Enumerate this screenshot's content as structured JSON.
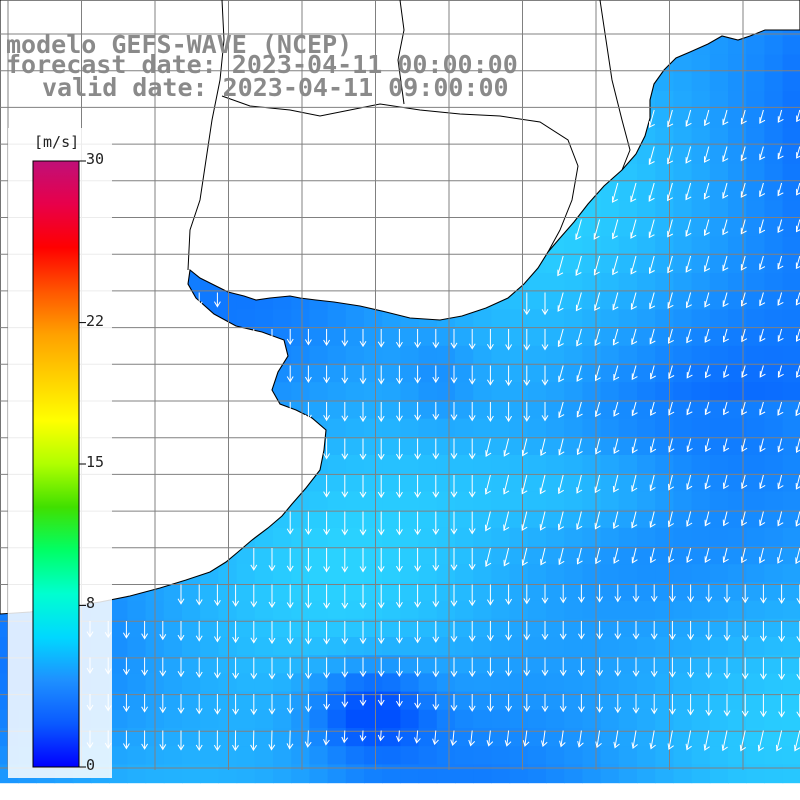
{
  "title": {
    "model": "modelo GEFS-WAVE (NCEP)",
    "forecast": "forecast date: 2023-04-11 00:00:00",
    "valid": "valid date: 2023-04-11 09:00:00"
  },
  "colorbar": {
    "unit": "[m/s]",
    "ticks": [
      {
        "label": "30",
        "value": 30
      },
      {
        "label": "22",
        "value": 22
      },
      {
        "label": "15",
        "value": 15
      },
      {
        "label": "8",
        "value": 8
      },
      {
        "label": "0",
        "value": 0
      }
    ],
    "colors": [
      "#0000ff",
      "#0a5aff",
      "#1e90ff",
      "#00d8ff",
      "#00ffd0",
      "#00ff66",
      "#40e000",
      "#b0ff00",
      "#ffff00",
      "#ffd000",
      "#ffa000",
      "#ff5500",
      "#ff0000",
      "#e8004a",
      "#c01078"
    ]
  },
  "field_colors": {
    "low": "#0050ff",
    "mid": "#1ea0ff",
    "high": "#2fe8ff",
    "land": "#ffffff",
    "coast": "#000000",
    "grid": "#808080",
    "arrow": "#ffffff"
  },
  "chart_data": {
    "type": "heatmap",
    "variable": "wind speed",
    "units": "m/s",
    "range": [
      0,
      30
    ],
    "arrow_direction": "mostly southward, turning southwest in the east and along the southern edge",
    "grid": true
  }
}
